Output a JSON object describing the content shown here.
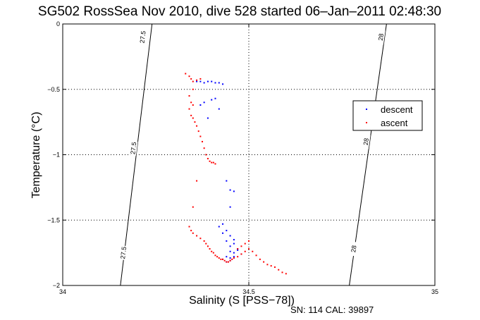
{
  "chart_data": {
    "type": "scatter",
    "title": "SG502 RossSea Nov 2010, dive 528 started 06–Jan–2011 02:48:30",
    "xlabel": "Salinity (S [PSS−78])",
    "ylabel": "Temperature (°C)",
    "xlim": [
      34,
      35
    ],
    "ylim": [
      -2,
      0
    ],
    "x_ticks": [
      34,
      34.5,
      35
    ],
    "x_tick_labels": [
      "34",
      "34.5",
      "35"
    ],
    "y_ticks": [
      0,
      -0.5,
      -1,
      -1.5,
      -2
    ],
    "y_tick_labels": [
      "0",
      "−0.5",
      "−1",
      "−1.5",
      "−2"
    ],
    "grid": true,
    "legend": {
      "placement": "right",
      "entries": [
        "descent",
        "ascent"
      ]
    },
    "footer": "SN: 114  CAL: 39897",
    "colors": {
      "descent": "#0000ff",
      "ascent": "#ff0000",
      "axes": "#000000"
    },
    "density_contours": [
      {
        "label": "27.5",
        "line": [
          [
            34.155,
            -2.0
          ],
          [
            34.24,
            0.0
          ]
        ],
        "label_positions": [
          [
            34.215,
            -0.1
          ],
          [
            34.19,
            -0.95
          ],
          [
            34.163,
            -1.75
          ]
        ]
      },
      {
        "label": "28",
        "line": [
          [
            34.77,
            -2.0
          ],
          [
            34.87,
            0.0
          ]
        ],
        "label_positions": [
          [
            34.855,
            -0.1
          ],
          [
            34.815,
            -0.9
          ],
          [
            34.782,
            -1.72
          ]
        ]
      }
    ],
    "series": [
      {
        "name": "descent",
        "x": [
          34.36,
          34.37,
          34.38,
          34.39,
          34.4,
          34.41,
          34.42,
          34.43,
          34.38,
          34.4,
          34.41,
          34.37,
          34.42,
          34.39,
          34.44,
          34.45,
          34.46,
          34.45,
          34.43,
          34.42,
          34.43,
          34.44,
          34.45,
          34.46,
          34.44,
          34.45,
          34.46,
          34.47,
          34.45,
          34.46,
          34.47,
          34.48,
          34.46,
          34.44,
          34.45,
          34.43,
          34.44,
          34.45
        ],
        "y": [
          -0.44,
          -0.44,
          -0.45,
          -0.44,
          -0.44,
          -0.45,
          -0.45,
          -0.46,
          -0.6,
          -0.58,
          -0.57,
          -0.62,
          -0.65,
          -0.72,
          -1.2,
          -1.27,
          -1.28,
          -1.4,
          -1.53,
          -1.55,
          -1.6,
          -1.58,
          -1.62,
          -1.65,
          -1.66,
          -1.7,
          -1.68,
          -1.72,
          -1.74,
          -1.75,
          -1.73,
          -1.76,
          -1.78,
          -1.78,
          -1.79,
          -1.8,
          -1.82,
          -1.81
        ]
      },
      {
        "name": "ascent",
        "x": [
          34.33,
          34.34,
          34.345,
          34.35,
          34.36,
          34.37,
          34.35,
          34.34,
          34.345,
          34.35,
          34.34,
          34.345,
          34.35,
          34.355,
          34.36,
          34.365,
          34.37,
          34.375,
          34.38,
          34.385,
          34.39,
          34.395,
          34.4,
          34.405,
          34.41,
          34.36,
          34.35,
          34.34,
          34.345,
          34.35,
          34.36,
          34.37,
          34.38,
          34.385,
          34.39,
          34.395,
          34.4,
          34.405,
          34.41,
          34.415,
          34.42,
          34.425,
          34.43,
          34.435,
          34.44,
          34.445,
          34.45,
          34.455,
          34.46,
          34.47,
          34.48,
          34.49,
          34.5,
          34.51,
          34.52,
          34.53,
          34.54,
          34.55,
          34.56,
          34.57,
          34.58,
          34.59,
          34.6,
          34.5,
          34.49,
          34.48,
          34.47
        ],
        "y": [
          -0.38,
          -0.4,
          -0.42,
          -0.44,
          -0.43,
          -0.42,
          -0.5,
          -0.55,
          -0.6,
          -0.62,
          -0.65,
          -0.7,
          -0.72,
          -0.75,
          -0.78,
          -0.82,
          -0.86,
          -0.9,
          -0.95,
          -1.0,
          -1.03,
          -1.05,
          -1.06,
          -1.06,
          -1.07,
          -1.2,
          -1.4,
          -1.55,
          -1.58,
          -1.6,
          -1.62,
          -1.64,
          -1.66,
          -1.68,
          -1.7,
          -1.72,
          -1.74,
          -1.75,
          -1.77,
          -1.78,
          -1.79,
          -1.8,
          -1.8,
          -1.81,
          -1.82,
          -1.82,
          -1.81,
          -1.8,
          -1.79,
          -1.78,
          -1.76,
          -1.74,
          -1.72,
          -1.74,
          -1.77,
          -1.8,
          -1.82,
          -1.84,
          -1.85,
          -1.86,
          -1.88,
          -1.9,
          -1.91,
          -1.66,
          -1.68,
          -1.7,
          -1.72
        ]
      }
    ]
  }
}
